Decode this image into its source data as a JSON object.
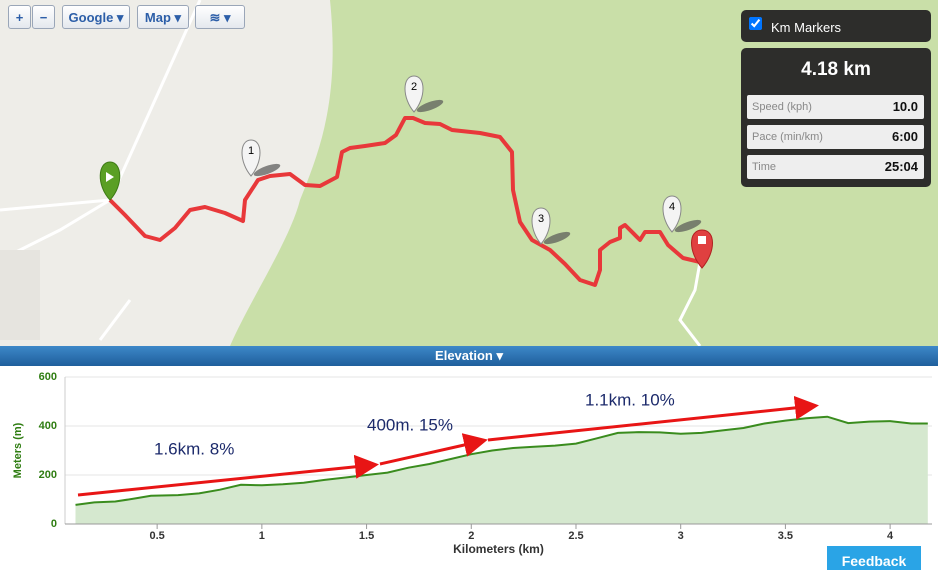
{
  "map_controls": {
    "zoom_in": "+",
    "zoom_out": "−",
    "provider": "Google",
    "map_type": "Map"
  },
  "stats": {
    "km_markers": "Km Markers",
    "distance": "4.18 km",
    "rows": [
      {
        "label": "Speed (kph)",
        "value": "10.0"
      },
      {
        "label": "Pace (min/km)",
        "value": "6:00"
      },
      {
        "label": "Time",
        "value": "25:04"
      }
    ]
  },
  "markers": [
    "1",
    "2",
    "3",
    "4"
  ],
  "panel_title": "Elevation",
  "feedback": "Feedback",
  "chart_data": {
    "type": "area",
    "x_label": "Kilometers (km)",
    "y_label": "Meters (m)",
    "x": [
      0.11,
      0.2,
      0.3,
      0.4,
      0.47,
      0.6,
      0.7,
      0.8,
      0.9,
      1.0,
      1.1,
      1.2,
      1.3,
      1.4,
      1.5,
      1.6,
      1.7,
      1.8,
      1.9,
      2.0,
      2.1,
      2.2,
      2.3,
      2.4,
      2.5,
      2.6,
      2.7,
      2.8,
      2.9,
      3.0,
      3.1,
      3.2,
      3.3,
      3.4,
      3.5,
      3.6,
      3.7,
      3.8,
      3.9,
      4.0,
      4.1,
      4.18
    ],
    "values": [
      78,
      88,
      92,
      105,
      115,
      118,
      125,
      140,
      160,
      158,
      162,
      168,
      180,
      190,
      200,
      210,
      230,
      245,
      265,
      285,
      300,
      310,
      315,
      320,
      328,
      350,
      372,
      375,
      374,
      368,
      372,
      382,
      392,
      410,
      422,
      432,
      438,
      412,
      418,
      420,
      410,
      410
    ],
    "xlim": [
      0.06,
      4.2
    ],
    "ylim": [
      0,
      600
    ],
    "xticks": [
      0.5,
      1,
      1.5,
      2,
      2.5,
      3,
      3.5,
      4
    ],
    "yticks": [
      0,
      200,
      400,
      600
    ],
    "color": "#3a8c1e",
    "fill": "#d5e8cf",
    "grid": true,
    "annotations": [
      "1.6km. 8%",
      "400m. 15%",
      "1.1km. 10%"
    ]
  }
}
